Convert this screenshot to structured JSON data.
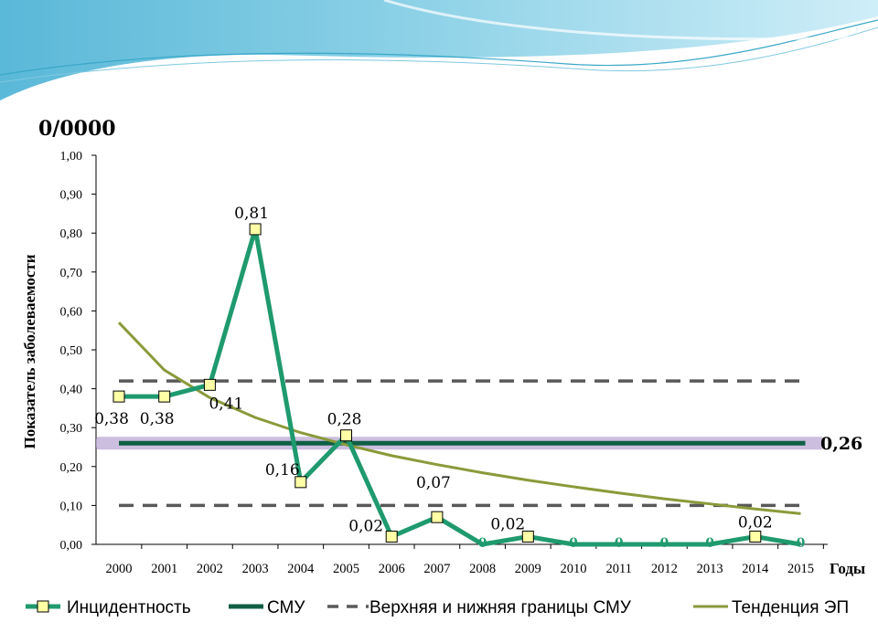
{
  "colors": {
    "incidence": "#1f9a6e",
    "smu": "#0f5f45",
    "bounds": "#595959",
    "trend": "#8a9a3a",
    "smu_glow": "#b9a8d4",
    "marker_fill": "#ffffa6",
    "banner_top": "#5ab8d8",
    "banner_light": "#cfeef8"
  },
  "chart_data": {
    "type": "line",
    "unit_label": "0/0000",
    "ylabel": "Показатель заболеваемости",
    "xlabel": "Годы",
    "ylim": [
      0,
      1.0
    ],
    "y_ticks": [
      "0,00",
      "0,10",
      "0,20",
      "0,30",
      "0,40",
      "0,50",
      "0,60",
      "0,70",
      "0,80",
      "0,90",
      "1,00"
    ],
    "categories": [
      "2000",
      "2001",
      "2002",
      "2003",
      "2004",
      "2005",
      "2006",
      "2007",
      "2008",
      "2009",
      "2010",
      "2011",
      "2012",
      "2013",
      "2014",
      "2015"
    ],
    "series": [
      {
        "name": "Инцидентность",
        "values": [
          0.38,
          0.38,
          0.41,
          0.81,
          0.16,
          0.28,
          0.02,
          0.07,
          0,
          0.02,
          0,
          0,
          0,
          0,
          0.02,
          0
        ],
        "labels": [
          "0,38",
          "0,38",
          "0,41",
          "0,81",
          "0,16",
          "0,28",
          "0,02",
          "0,07",
          "0",
          "0,02",
          "0",
          "0",
          "0",
          "0",
          "0,02",
          "0"
        ]
      },
      {
        "name": "СМУ",
        "value": 0.26,
        "label": "0,26"
      },
      {
        "name": "Верхняя и нижняя границы СМУ",
        "upper": 0.42,
        "lower": 0.1
      },
      {
        "name": "Тенденция ЭП",
        "type": "logarithmic",
        "values": [
          0.57,
          0.448,
          0.377,
          0.326,
          0.287,
          0.256,
          0.228,
          0.205,
          0.184,
          0.165,
          0.148,
          0.132,
          0.117,
          0.104,
          0.091,
          0.079
        ]
      }
    ],
    "legend": [
      "Инцидентность",
      "СМУ",
      "Верхняя и нижняя границы СМУ",
      "Тенденция ЭП"
    ],
    "legend_position": "bottom",
    "grid": false
  }
}
